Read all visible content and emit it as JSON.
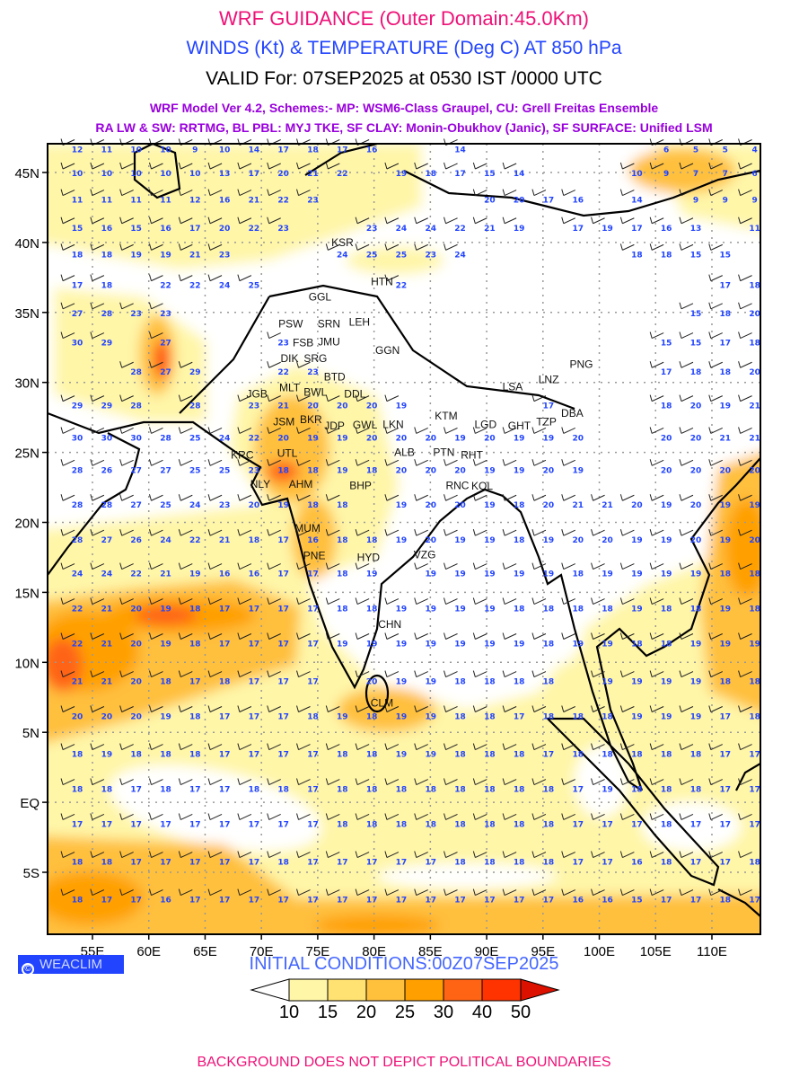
{
  "header": {
    "title": "WRF GUIDANCE (Outer Domain:45.0Km)",
    "subtitle": "WINDS (Kt) & TEMPERATURE (Deg C) AT 850 hPa",
    "valid": "VALID For: 07SEP2025 at 0530 IST /0000 UTC",
    "model_line1": "WRF Model Ver 4.2, Schemes:- MP: WSM6-Class Graupel, CU: Grell Freitas Ensemble",
    "model_line2": "RA LW & SW: RRTMG, BL PBL: MYJ TKE, SF CLAY: Monin-Obukhov (Janic), SF SURFACE: Unified LSM"
  },
  "axes": {
    "lon_labels": [
      {
        "lon": 55,
        "label": "55E"
      },
      {
        "lon": 60,
        "label": "60E"
      },
      {
        "lon": 65,
        "label": "65E"
      },
      {
        "lon": 70,
        "label": "70E"
      },
      {
        "lon": 75,
        "label": "75E"
      },
      {
        "lon": 80,
        "label": "80E"
      },
      {
        "lon": 85,
        "label": "85E"
      },
      {
        "lon": 90,
        "label": "90E"
      },
      {
        "lon": 95,
        "label": "95E"
      },
      {
        "lon": 100,
        "label": "100E"
      },
      {
        "lon": 105,
        "label": "105E"
      },
      {
        "lon": 110,
        "label": "110E"
      }
    ],
    "lat_labels": [
      {
        "lat": 45,
        "label": "45N"
      },
      {
        "lat": 40,
        "label": "40N"
      },
      {
        "lat": 35,
        "label": "35N"
      },
      {
        "lat": 30,
        "label": "30N"
      },
      {
        "lat": 25,
        "label": "25N"
      },
      {
        "lat": 20,
        "label": "20N"
      },
      {
        "lat": 15,
        "label": "15N"
      },
      {
        "lat": 10,
        "label": "10N"
      },
      {
        "lat": 5,
        "label": "5N"
      },
      {
        "lat": 0,
        "label": "EQ"
      },
      {
        "lat": -5,
        "label": "5S"
      }
    ],
    "lon_range": [
      51.0,
      114.3
    ],
    "lat_range": [
      -9.4,
      46.9
    ]
  },
  "cities": [
    {
      "name": "KSR",
      "lon": 77.2,
      "lat": 39.8
    },
    {
      "name": "HTN",
      "lon": 81.1,
      "lat": 37.2
    },
    {
      "name": "GGL",
      "lon": 75.2,
      "lat": 36.1
    },
    {
      "name": "PSW",
      "lon": 72.6,
      "lat": 34.2
    },
    {
      "name": "SRN",
      "lon": 76.0,
      "lat": 34.2
    },
    {
      "name": "LEH",
      "lon": 78.7,
      "lat": 34.3
    },
    {
      "name": "JMU",
      "lon": 76.0,
      "lat": 32.9
    },
    {
      "name": "DIK",
      "lon": 72.5,
      "lat": 32.1
    },
    {
      "name": "SRG",
      "lon": 74.0,
      "lat": 32.3
    },
    {
      "name": "GGN",
      "lon": 81.2,
      "lat": 32.3
    },
    {
      "name": "FSB",
      "lon": 74.1,
      "lat": 31.5
    },
    {
      "name": "MLT",
      "lon": 72.5,
      "lat": 30.4
    },
    {
      "name": "BTD",
      "lon": 76.1,
      "lat": 30.4
    },
    {
      "name": "BWL",
      "lon": 72.8,
      "lat": 29.5
    },
    {
      "name": "PNG",
      "lon": 98.4,
      "lat": 31.3
    },
    {
      "name": "LSA",
      "lon": 92.3,
      "lat": 29.7
    },
    {
      "name": "LNZ",
      "lon": 95.5,
      "lat": 30.2
    },
    {
      "name": "JGB",
      "lon": 69.6,
      "lat": 28.4
    },
    {
      "name": "BKR",
      "lon": 74.4,
      "lat": 28.3
    },
    {
      "name": "DDL",
      "lon": 78.3,
      "lat": 28.6
    },
    {
      "name": "JSM",
      "lon": 72.0,
      "lat": 27.2
    },
    {
      "name": "KTM",
      "lon": 86.4,
      "lat": 27.6
    },
    {
      "name": "JDP",
      "lon": 74.1,
      "lat": 26.5
    },
    {
      "name": "UTL",
      "lon": 72.3,
      "lat": 26.1
    },
    {
      "name": "LKN",
      "lon": 81.7,
      "lat": 26.6
    },
    {
      "name": "GWL",
      "lon": 79.2,
      "lat": 26.4
    },
    {
      "name": "LGD",
      "lon": 89.9,
      "lat": 27.0
    },
    {
      "name": "GHT",
      "lon": 92.9,
      "lat": 26.5
    },
    {
      "name": "TZP",
      "lon": 94.5,
      "lat": 27.2
    },
    {
      "name": "DBA",
      "lon": 96.8,
      "lat": 27.8
    },
    {
      "name": "KRC",
      "lon": 68.3,
      "lat": 24.8
    },
    {
      "name": "ALB",
      "lon": 82.7,
      "lat": 25.6
    },
    {
      "name": "PTN",
      "lon": 86.2,
      "lat": 25.6
    },
    {
      "name": "RHT",
      "lon": 85.1,
      "lat": 24.8
    },
    {
      "name": "AHM",
      "lon": 73.5,
      "lat": 23.3
    },
    {
      "name": "NLY",
      "lon": 69.9,
      "lat": 23.3
    },
    {
      "name": "BHP",
      "lon": 78.8,
      "lat": 23.4
    },
    {
      "name": "RNC",
      "lon": 87.4,
      "lat": 23.6
    },
    {
      "name": "KOL",
      "lon": 89.6,
      "lat": 22.6
    },
    {
      "name": "MUM",
      "lon": 74.1,
      "lat": 19.2
    },
    {
      "name": "PNE",
      "lon": 74.7,
      "lat": 18.6
    },
    {
      "name": "HYD",
      "lon": 79.5,
      "lat": 17.5
    },
    {
      "name": "VZG",
      "lon": 84.5,
      "lat": 17.7
    },
    {
      "name": "CHN",
      "lon": 81.4,
      "lat": 13.3
    },
    {
      "name": "CLM",
      "lon": 80.7,
      "lat": 6.7
    }
  ],
  "temperature_grid": {
    "units": "Deg C",
    "start_lon": 53.65,
    "step_lon": 2.615,
    "rows": [
      {
        "lat": 46.7,
        "values": [
          12,
          11,
          10,
          10,
          9,
          10,
          14,
          17,
          18,
          17,
          16,
          null,
          null,
          14,
          null,
          null,
          null,
          null,
          null,
          null,
          6,
          5,
          5,
          4
        ]
      },
      {
        "lat": 45.0,
        "values": [
          10,
          10,
          10,
          10,
          10,
          13,
          17,
          20,
          21,
          22,
          null,
          19,
          18,
          17,
          15,
          14,
          null,
          null,
          null,
          10,
          9,
          7,
          7,
          6
        ]
      },
      {
        "lat": 43.1,
        "values": [
          11,
          11,
          11,
          11,
          12,
          16,
          21,
          22,
          23,
          null,
          null,
          null,
          null,
          null,
          20,
          20,
          17,
          16,
          null,
          14,
          null,
          9,
          9,
          9
        ]
      },
      {
        "lat": 41.1,
        "values": [
          15,
          16,
          15,
          16,
          17,
          20,
          22,
          23,
          null,
          null,
          23,
          24,
          24,
          22,
          21,
          19,
          null,
          17,
          19,
          17,
          16,
          13,
          null,
          11
        ]
      },
      {
        "lat": 39.2,
        "values": [
          18,
          18,
          19,
          19,
          21,
          23,
          null,
          null,
          null,
          24,
          25,
          25,
          23,
          24,
          null,
          null,
          null,
          null,
          null,
          18,
          18,
          15,
          15,
          null
        ]
      },
      {
        "lat": 37.0,
        "values": [
          17,
          18,
          null,
          22,
          22,
          24,
          25,
          null,
          null,
          null,
          null,
          22,
          null,
          null,
          null,
          null,
          null,
          null,
          null,
          null,
          null,
          null,
          17,
          18
        ]
      },
      {
        "lat": 35.0,
        "values": [
          27,
          28,
          23,
          23,
          null,
          null,
          null,
          null,
          null,
          null,
          null,
          null,
          null,
          null,
          null,
          null,
          null,
          null,
          null,
          null,
          null,
          15,
          18,
          20
        ]
      },
      {
        "lat": 32.9,
        "values": [
          30,
          29,
          null,
          27,
          null,
          null,
          null,
          23,
          null,
          null,
          null,
          null,
          null,
          null,
          null,
          null,
          null,
          null,
          null,
          null,
          15,
          15,
          17,
          18
        ]
      },
      {
        "lat": 30.8,
        "values": [
          null,
          null,
          28,
          27,
          29,
          null,
          null,
          22,
          23,
          null,
          null,
          null,
          null,
          null,
          null,
          null,
          null,
          null,
          null,
          null,
          17,
          18,
          18,
          20
        ]
      },
      {
        "lat": 28.4,
        "values": [
          29,
          29,
          28,
          null,
          28,
          null,
          23,
          21,
          20,
          20,
          20,
          19,
          null,
          null,
          null,
          null,
          17,
          null,
          null,
          null,
          18,
          20,
          19,
          21
        ]
      },
      {
        "lat": 26.1,
        "values": [
          30,
          30,
          30,
          28,
          25,
          24,
          22,
          20,
          19,
          19,
          20,
          20,
          20,
          19,
          20,
          19,
          19,
          20,
          null,
          null,
          20,
          20,
          21,
          21
        ]
      },
      {
        "lat": 23.8,
        "values": [
          28,
          26,
          27,
          27,
          25,
          25,
          23,
          18,
          18,
          19,
          18,
          20,
          20,
          20,
          19,
          19,
          20,
          19,
          null,
          null,
          20,
          20,
          20,
          20
        ]
      },
      {
        "lat": 21.3,
        "values": [
          28,
          28,
          27,
          25,
          24,
          23,
          20,
          19,
          18,
          18,
          null,
          19,
          20,
          20,
          19,
          18,
          20,
          21,
          21,
          20,
          19,
          20,
          19,
          19
        ]
      },
      {
        "lat": 18.8,
        "values": [
          28,
          27,
          26,
          24,
          22,
          21,
          18,
          17,
          16,
          18,
          18,
          19,
          20,
          19,
          19,
          18,
          19,
          20,
          20,
          19,
          19,
          20,
          19,
          20
        ]
      },
      {
        "lat": 16.4,
        "values": [
          24,
          24,
          22,
          21,
          19,
          16,
          16,
          17,
          17,
          18,
          19,
          null,
          19,
          19,
          19,
          19,
          19,
          18,
          19,
          19,
          19,
          19,
          18,
          18
        ]
      },
      {
        "lat": 13.9,
        "values": [
          22,
          21,
          20,
          19,
          18,
          17,
          17,
          17,
          17,
          18,
          18,
          19,
          19,
          19,
          19,
          18,
          18,
          18,
          18,
          19,
          18,
          18,
          19,
          18
        ]
      },
      {
        "lat": 11.4,
        "values": [
          22,
          21,
          20,
          19,
          18,
          17,
          17,
          17,
          17,
          19,
          19,
          19,
          19,
          19,
          19,
          19,
          18,
          19,
          19,
          18,
          18,
          19,
          19,
          19
        ]
      },
      {
        "lat": 8.7,
        "values": [
          21,
          21,
          20,
          18,
          17,
          18,
          17,
          17,
          17,
          null,
          20,
          19,
          19,
          18,
          18,
          18,
          18,
          null,
          19,
          19,
          19,
          19,
          18,
          18
        ]
      },
      {
        "lat": 6.2,
        "values": [
          20,
          20,
          20,
          19,
          18,
          17,
          17,
          17,
          18,
          19,
          18,
          19,
          19,
          18,
          18,
          17,
          18,
          18,
          18,
          19,
          19,
          19,
          17,
          18
        ]
      },
      {
        "lat": 3.5,
        "values": [
          18,
          19,
          18,
          18,
          18,
          17,
          17,
          17,
          17,
          18,
          18,
          19,
          19,
          18,
          18,
          18,
          17,
          18,
          18,
          18,
          18,
          18,
          17,
          17
        ]
      },
      {
        "lat": 1.0,
        "values": [
          18,
          18,
          17,
          18,
          17,
          17,
          18,
          18,
          17,
          18,
          18,
          18,
          18,
          18,
          18,
          18,
          18,
          17,
          19,
          18,
          18,
          18,
          17,
          17
        ]
      },
      {
        "lat": -1.5,
        "values": [
          17,
          17,
          17,
          17,
          17,
          17,
          17,
          17,
          17,
          18,
          18,
          18,
          18,
          18,
          18,
          18,
          18,
          17,
          17,
          17,
          18,
          17,
          17,
          17
        ]
      },
      {
        "lat": -4.2,
        "values": [
          18,
          18,
          17,
          17,
          17,
          17,
          17,
          18,
          17,
          17,
          17,
          17,
          17,
          18,
          18,
          18,
          18,
          17,
          17,
          16,
          18,
          17,
          17,
          18
        ]
      },
      {
        "lat": -6.9,
        "values": [
          18,
          17,
          17,
          16,
          17,
          17,
          17,
          17,
          17,
          17,
          17,
          17,
          17,
          17,
          17,
          17,
          17,
          16,
          16,
          15,
          17,
          17,
          18,
          17
        ]
      }
    ]
  },
  "badge": {
    "symbol": "©",
    "label": "WEACLIM"
  },
  "initial_conditions": "INITIAL CONDITIONS:00Z07SEP2025",
  "colorbar": {
    "labels": [
      "10",
      "15",
      "20",
      "25",
      "30",
      "40",
      "50"
    ],
    "colors": [
      "#ffffff",
      "#fff6a8",
      "#ffe271",
      "#ffc03c",
      "#ffa000",
      "#ff6414",
      "#ff3300",
      "#dd1100"
    ]
  },
  "footer": "BACKGROUND DOES NOT DEPICT POLITICAL BOUNDARIES"
}
